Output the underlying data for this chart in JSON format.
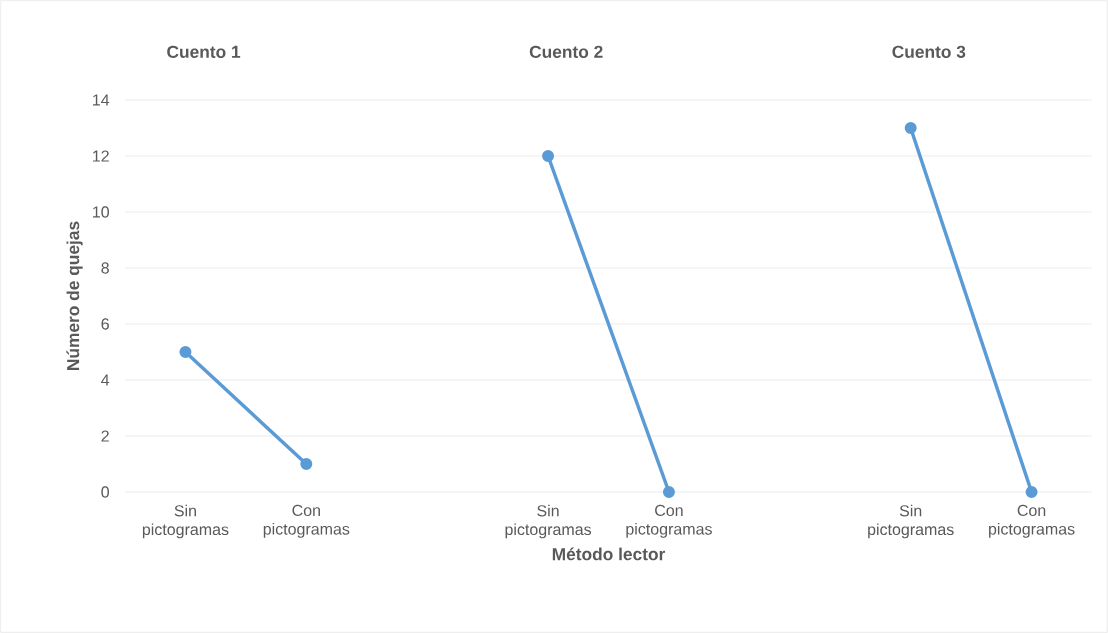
{
  "chart_data": {
    "type": "line",
    "categories": [
      "Sin pictogramas",
      "Con pictogramas",
      null,
      "Sin pictogramas",
      "Con pictogramas",
      null,
      "Sin pictogramas",
      "Con pictogramas"
    ],
    "series": [
      {
        "color": "#5b9bd5",
        "values": [
          5,
          1,
          null,
          null,
          null,
          null,
          null,
          null
        ]
      },
      {
        "color": "#5b9bd5",
        "values": [
          null,
          null,
          null,
          12,
          0,
          null,
          null,
          null
        ]
      },
      {
        "color": "#5b9bd5",
        "values": [
          null,
          null,
          null,
          null,
          null,
          null,
          13,
          0
        ]
      }
    ],
    "annotations": [
      "Cuento 1",
      "Cuento 2",
      "Cuento 3"
    ],
    "xlabel": "Método lector",
    "ylabel": "Número de quejas",
    "ylim": [
      0,
      14
    ],
    "yticks": [
      0,
      2,
      4,
      6,
      8,
      10,
      12,
      14
    ],
    "grid": "y",
    "marker": "circle",
    "line_style": "solid"
  }
}
